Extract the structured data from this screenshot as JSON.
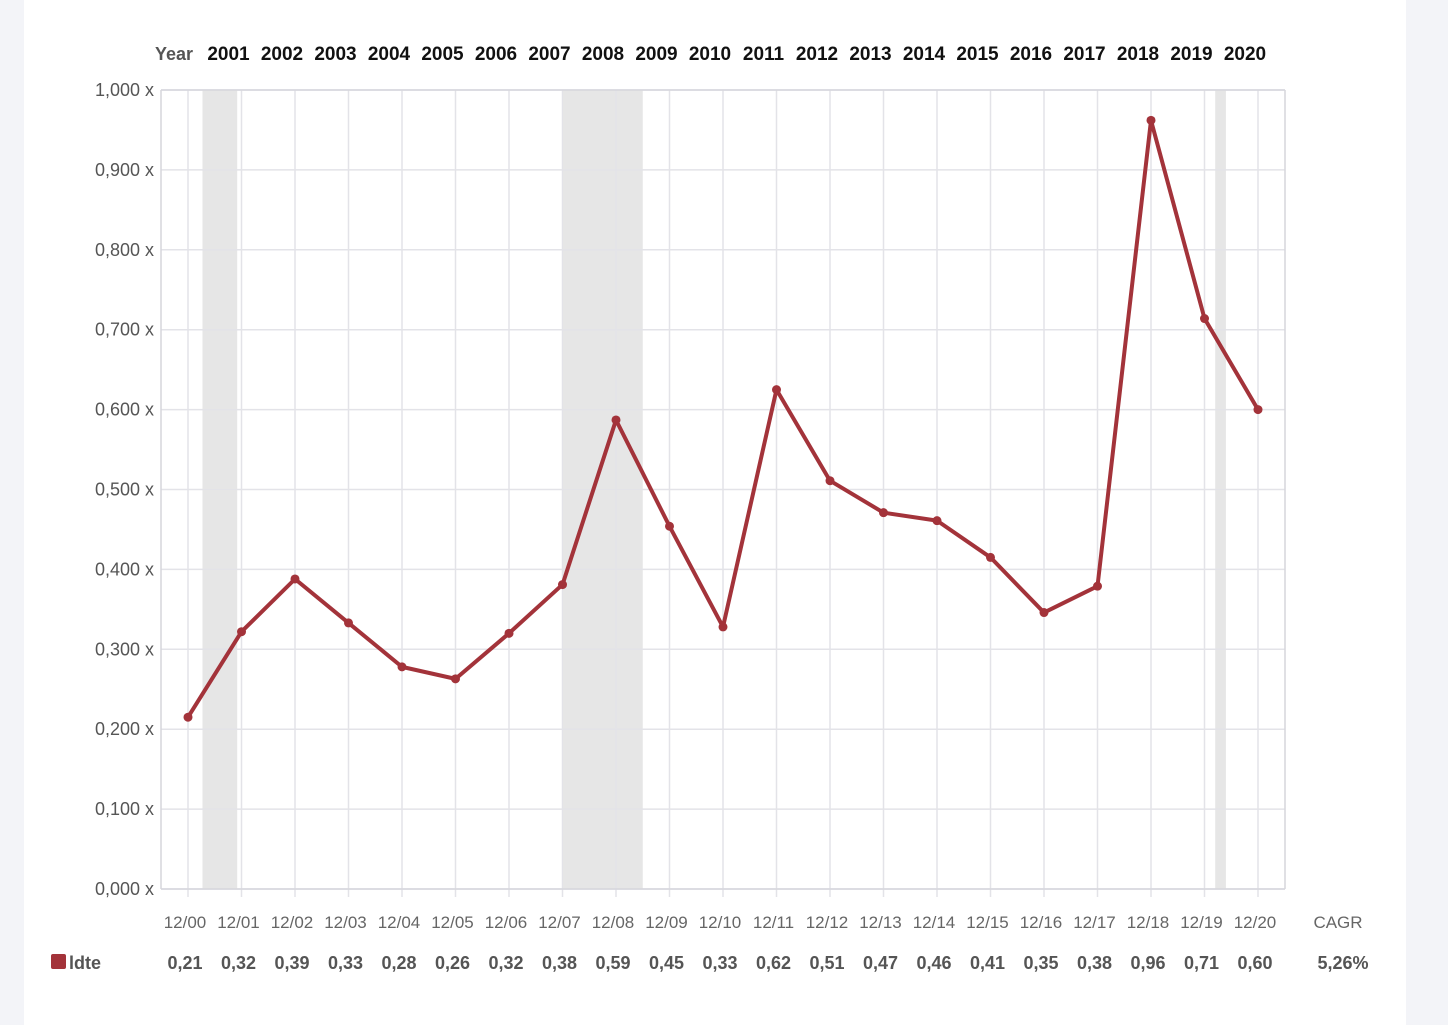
{
  "chart_data": {
    "type": "line",
    "year_header": "Year",
    "years": [
      "2001",
      "2002",
      "2003",
      "2004",
      "2005",
      "2006",
      "2007",
      "2008",
      "2009",
      "2010",
      "2011",
      "2012",
      "2013",
      "2014",
      "2015",
      "2016",
      "2017",
      "2018",
      "2019",
      "2020"
    ],
    "x": [
      "12/00",
      "12/01",
      "12/02",
      "12/03",
      "12/04",
      "12/05",
      "12/06",
      "12/07",
      "12/08",
      "12/09",
      "12/10",
      "12/11",
      "12/12",
      "12/13",
      "12/14",
      "12/15",
      "12/16",
      "12/17",
      "12/18",
      "12/19",
      "12/20"
    ],
    "ylim": [
      0,
      1.0
    ],
    "yticks": [
      0,
      0.1,
      0.2,
      0.3,
      0.4,
      0.5,
      0.6,
      0.7,
      0.8,
      0.9,
      1.0
    ],
    "ytick_labels": [
      "0,000 x",
      "0,100 x",
      "0,200 x",
      "0,300 x",
      "0,400 x",
      "0,500 x",
      "0,600 x",
      "0,700 x",
      "0,800 x",
      "0,900 x",
      "1,000 x"
    ],
    "series": [
      {
        "name": "ldte",
        "color": "#a3333a",
        "values": [
          0.215,
          0.322,
          0.388,
          0.333,
          0.278,
          0.263,
          0.32,
          0.381,
          0.587,
          0.454,
          0.328,
          0.625,
          0.511,
          0.471,
          0.461,
          0.415,
          0.346,
          0.379,
          0.962,
          0.714,
          0.6
        ],
        "labels": [
          "0,21",
          "0,32",
          "0,39",
          "0,33",
          "0,28",
          "0,26",
          "0,32",
          "0,38",
          "0,59",
          "0,45",
          "0,33",
          "0,62",
          "0,51",
          "0,47",
          "0,46",
          "0,41",
          "0,35",
          "0,38",
          "0,96",
          "0,71",
          "0,60"
        ]
      }
    ],
    "shaded_periods": [
      [
        0.27,
        0.92
      ],
      [
        7.0,
        8.5
      ],
      [
        19.2,
        19.4
      ]
    ],
    "shade_color": "#e6e6e6",
    "cagr_label": "CAGR",
    "cagr_value": "5,26%",
    "grid": true
  }
}
